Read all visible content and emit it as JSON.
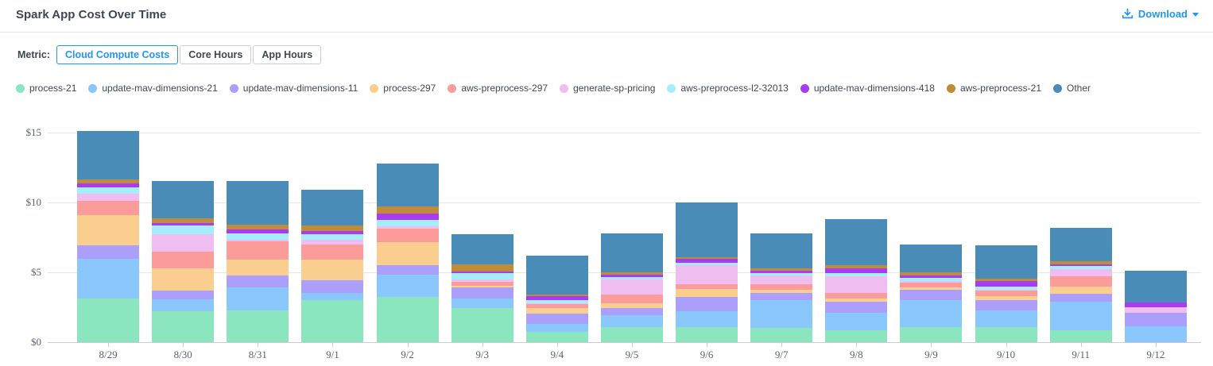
{
  "header": {
    "title": "Spark App Cost Over Time",
    "download_label": "Download"
  },
  "metric": {
    "label": "Metric:",
    "options": [
      {
        "label": "Cloud Compute Costs",
        "active": true
      },
      {
        "label": "Core Hours",
        "active": false
      },
      {
        "label": "App Hours",
        "active": false
      }
    ]
  },
  "colors": {
    "accent_blue": "#2196F3",
    "title_text": "#3d4652",
    "tick_text": "#5a646e",
    "gridline": "#e4e6e9",
    "axis_line": "#c7ccd1"
  },
  "chart_data": {
    "type": "bar",
    "stacked": true,
    "title": "Spark App Cost Over Time",
    "xlabel": "",
    "ylabel": "Cloud Compute Costs ($)",
    "ylim": [
      0,
      15.4
    ],
    "grid": true,
    "legend_position": "top",
    "y_ticks": [
      {
        "value": 0,
        "label": "$0"
      },
      {
        "value": 5,
        "label": "$5"
      },
      {
        "value": 10,
        "label": "$10"
      },
      {
        "value": 15,
        "label": "$15"
      }
    ],
    "categories": [
      "8/29",
      "8/30",
      "8/31",
      "9/1",
      "9/2",
      "9/3",
      "9/4",
      "9/5",
      "9/6",
      "9/7",
      "9/8",
      "9/9",
      "9/10",
      "9/11",
      "9/12"
    ],
    "series": [
      {
        "name": "process-21",
        "color": "#8BE5BF",
        "values": [
          3.14,
          2.2,
          2.29,
          2.99,
          3.22,
          2.46,
          0.75,
          1.1,
          1.1,
          1.0,
          0.87,
          1.06,
          1.06,
          0.87,
          0
        ]
      },
      {
        "name": "update-mav-dimensions-21",
        "color": "#8AC7FC",
        "values": [
          2.84,
          0.88,
          1.65,
          0.53,
          1.6,
          0.68,
          0.54,
          0.81,
          1.1,
          1.99,
          1.21,
          1.97,
          1.21,
          2.02,
          1.15
        ]
      },
      {
        "name": "update-mav-dimensions-11",
        "color": "#AC9FFB",
        "values": [
          0.98,
          0.63,
          0.85,
          0.89,
          0.67,
          0.76,
          0.75,
          0.55,
          1.02,
          0.53,
          0.81,
          0.72,
          0.76,
          0.57,
          0.95
        ]
      },
      {
        "name": "process-297",
        "color": "#F9CE8E",
        "values": [
          2.12,
          1.55,
          1.13,
          1.51,
          1.66,
          0.13,
          0.38,
          0.34,
          0.56,
          0.26,
          0.25,
          0.15,
          0.24,
          0.51,
          0
        ]
      },
      {
        "name": "aws-preprocess-297",
        "color": "#FB9C9B",
        "values": [
          1.06,
          1.24,
          1.27,
          1.08,
          0.98,
          0.28,
          0.29,
          0.6,
          0.35,
          0.38,
          0.38,
          0.37,
          0.44,
          0.72,
          0
        ]
      },
      {
        "name": "generate-sp-pricing",
        "color": "#EFBDEF",
        "values": [
          0.51,
          1.22,
          0.15,
          0.34,
          0.16,
          0.16,
          0.09,
          1.07,
          1.36,
          0.62,
          1.21,
          0.08,
          0.07,
          0.53,
          0.41
        ]
      },
      {
        "name": "aws-preprocess-l2-32013",
        "color": "#A5EDFB",
        "values": [
          0.43,
          0.64,
          0.42,
          0.38,
          0.47,
          0.45,
          0.19,
          0.18,
          0.19,
          0.14,
          0.19,
          0.25,
          0.19,
          0.23,
          0
        ]
      },
      {
        "name": "update-mav-dimensions-418",
        "color": "#A93BF2",
        "values": [
          0.27,
          0.19,
          0.34,
          0.24,
          0.42,
          0.15,
          0.28,
          0.17,
          0.28,
          0.19,
          0.38,
          0.18,
          0.38,
          0.13,
          0.33
        ]
      },
      {
        "name": "aws-preprocess-21",
        "color": "#BF8C3C",
        "values": [
          0.28,
          0.3,
          0.34,
          0.42,
          0.52,
          0.51,
          0.13,
          0.16,
          0.15,
          0.19,
          0.19,
          0.2,
          0.19,
          0.19,
          0
        ]
      },
      {
        "name": "Other",
        "color": "#4A8CB8",
        "values": [
          3.47,
          2.71,
          3.11,
          2.56,
          3.07,
          2.14,
          2.77,
          2.79,
          3.88,
          2.47,
          3.32,
          2.04,
          2.38,
          2.42,
          2.27
        ]
      }
    ]
  }
}
